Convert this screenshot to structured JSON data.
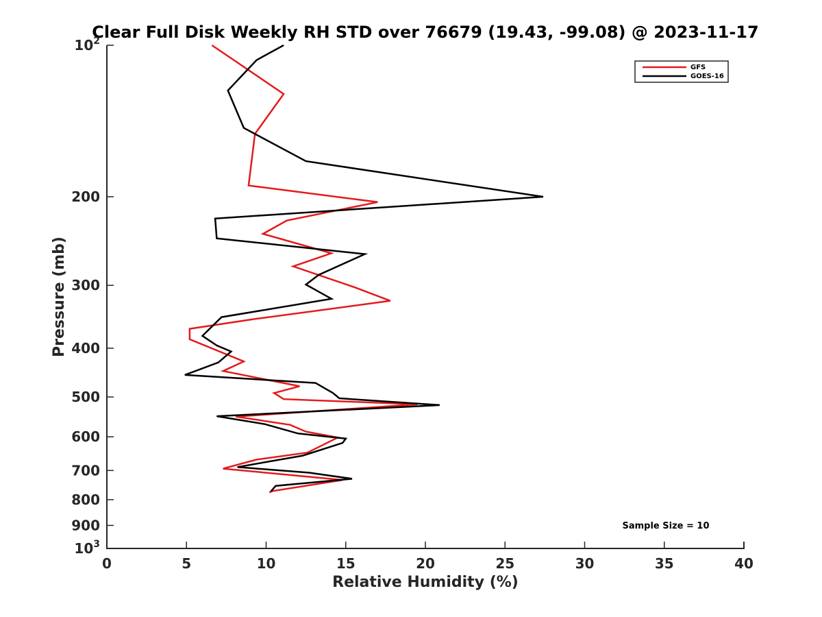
{
  "chart_data": {
    "type": "line",
    "title": "Clear Full Disk Weekly RH STD over 76679 (19.43, -99.08) @ 2023-11-17",
    "xlabel": "Relative Humidity (%)",
    "ylabel": "Pressure (mb)",
    "xlim": [
      0,
      40
    ],
    "ylim": [
      100,
      1000
    ],
    "yscale": "log",
    "y_reversed": true,
    "x_ticks": [
      "0",
      "5",
      "10",
      "15",
      "20",
      "25",
      "30",
      "35",
      "40"
    ],
    "y_ticks": [
      {
        "value": 100,
        "label": "10",
        "sup": "2"
      },
      {
        "value": 200,
        "label": "200",
        "sup": ""
      },
      {
        "value": 300,
        "label": "300",
        "sup": ""
      },
      {
        "value": 400,
        "label": "400",
        "sup": ""
      },
      {
        "value": 500,
        "label": "500",
        "sup": ""
      },
      {
        "value": 600,
        "label": "600",
        "sup": ""
      },
      {
        "value": 700,
        "label": "700",
        "sup": ""
      },
      {
        "value": 800,
        "label": "800",
        "sup": ""
      },
      {
        "value": 900,
        "label": "900",
        "sup": ""
      },
      {
        "value": 1000,
        "label": "10",
        "sup": "3"
      }
    ],
    "legend_position": "top-right",
    "annotation": "Sample Size = 10",
    "series": [
      {
        "name": "GFS",
        "color": "#e31a1c",
        "points": [
          [
            6.6,
            100
          ],
          [
            11.1,
            125
          ],
          [
            9.3,
            150
          ],
          [
            8.9,
            190
          ],
          [
            17.0,
            205
          ],
          [
            11.3,
            223
          ],
          [
            9.8,
            237
          ],
          [
            14.1,
            259
          ],
          [
            11.7,
            275
          ],
          [
            15.6,
            303
          ],
          [
            17.8,
            322
          ],
          [
            9.3,
            350
          ],
          [
            5.2,
            366
          ],
          [
            5.2,
            384
          ],
          [
            8.6,
            425
          ],
          [
            7.3,
            444
          ],
          [
            12.1,
            476
          ],
          [
            10.5,
            491
          ],
          [
            11.1,
            505
          ],
          [
            19.5,
            517
          ],
          [
            8.1,
            547
          ],
          [
            11.5,
            568
          ],
          [
            12.5,
            586
          ],
          [
            14.5,
            602
          ],
          [
            12.6,
            645
          ],
          [
            9.4,
            666
          ],
          [
            7.3,
            694
          ],
          [
            14.8,
            731
          ],
          [
            10.4,
            769
          ],
          [
            10.2,
            774
          ]
        ]
      },
      {
        "name": "GOES-16",
        "color": "#000000",
        "points": [
          [
            11.1,
            100
          ],
          [
            9.4,
            107
          ],
          [
            7.6,
            123
          ],
          [
            8.6,
            146
          ],
          [
            12.5,
            170
          ],
          [
            27.4,
            200
          ],
          [
            6.8,
            221
          ],
          [
            6.9,
            242
          ],
          [
            16.2,
            260
          ],
          [
            13.3,
            286
          ],
          [
            12.5,
            299
          ],
          [
            14.1,
            319
          ],
          [
            7.2,
            347
          ],
          [
            6.0,
            378
          ],
          [
            6.9,
            395
          ],
          [
            7.8,
            406
          ],
          [
            7.0,
            427
          ],
          [
            4.9,
            452
          ],
          [
            13.1,
            469
          ],
          [
            14.2,
            491
          ],
          [
            14.6,
            503
          ],
          [
            20.9,
            519
          ],
          [
            6.9,
            546
          ],
          [
            9.9,
            566
          ],
          [
            12.0,
            591
          ],
          [
            15.0,
            605
          ],
          [
            14.8,
            617
          ],
          [
            12.3,
            654
          ],
          [
            8.2,
            689
          ],
          [
            12.7,
            707
          ],
          [
            15.4,
            727
          ],
          [
            10.6,
            751
          ],
          [
            10.3,
            770
          ]
        ]
      }
    ]
  }
}
